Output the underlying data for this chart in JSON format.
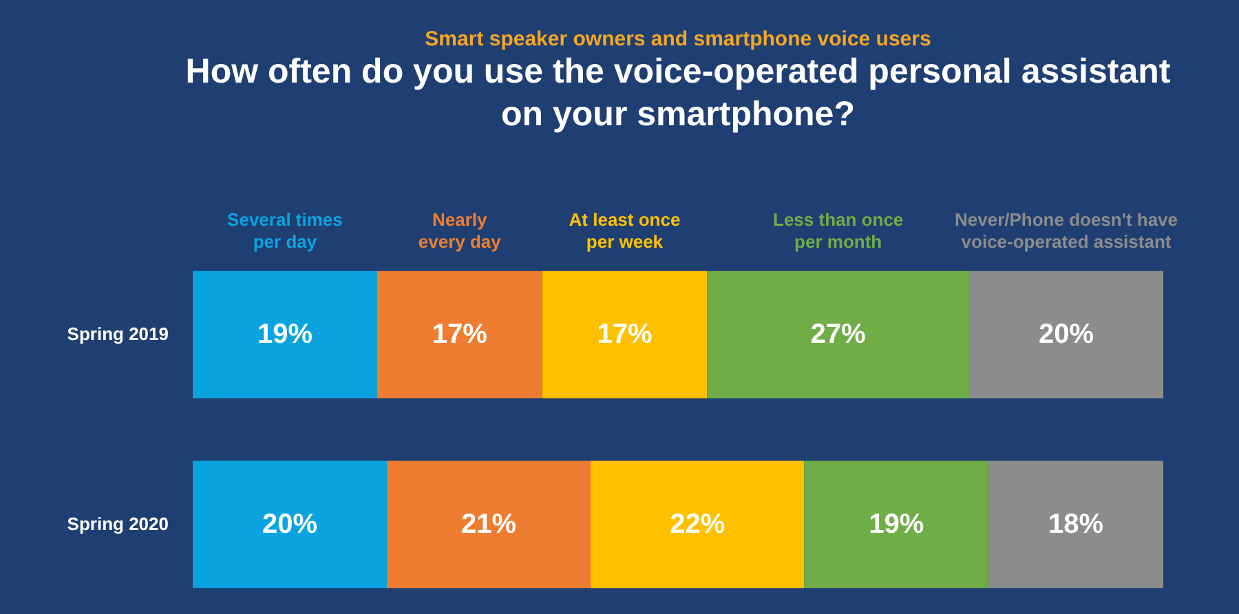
{
  "chart_data": {
    "type": "bar",
    "orientation": "horizontal",
    "stacked": true,
    "title": "Smart speaker owners and smartphone voice users",
    "subtitle": "How often do you use the voice-operated personal assistant on your smartphone?",
    "categories": [
      "Spring 2019",
      "Spring 2020"
    ],
    "series": [
      {
        "name": "Several times per day",
        "color": "#0aa3e0",
        "values": [
          19,
          20
        ],
        "value_labels": [
          "19%",
          "20%"
        ]
      },
      {
        "name": "Nearly every day",
        "color": "#ef7d31",
        "values": [
          17,
          21
        ],
        "value_labels": [
          "17%",
          "21%"
        ]
      },
      {
        "name": "At least once per week",
        "color": "#ffc000",
        "values": [
          17,
          22
        ],
        "value_labels": [
          "17%",
          "22%"
        ]
      },
      {
        "name": "Less than once per month",
        "color": "#70ad47",
        "values": [
          27,
          19
        ],
        "value_labels": [
          "27%",
          "19%"
        ]
      },
      {
        "name": "Never/Phone doesn't have voice-operated assistant",
        "color": "#8c8c8c",
        "values": [
          20,
          18
        ],
        "value_labels": [
          "20%",
          "18%"
        ]
      }
    ]
  }
}
